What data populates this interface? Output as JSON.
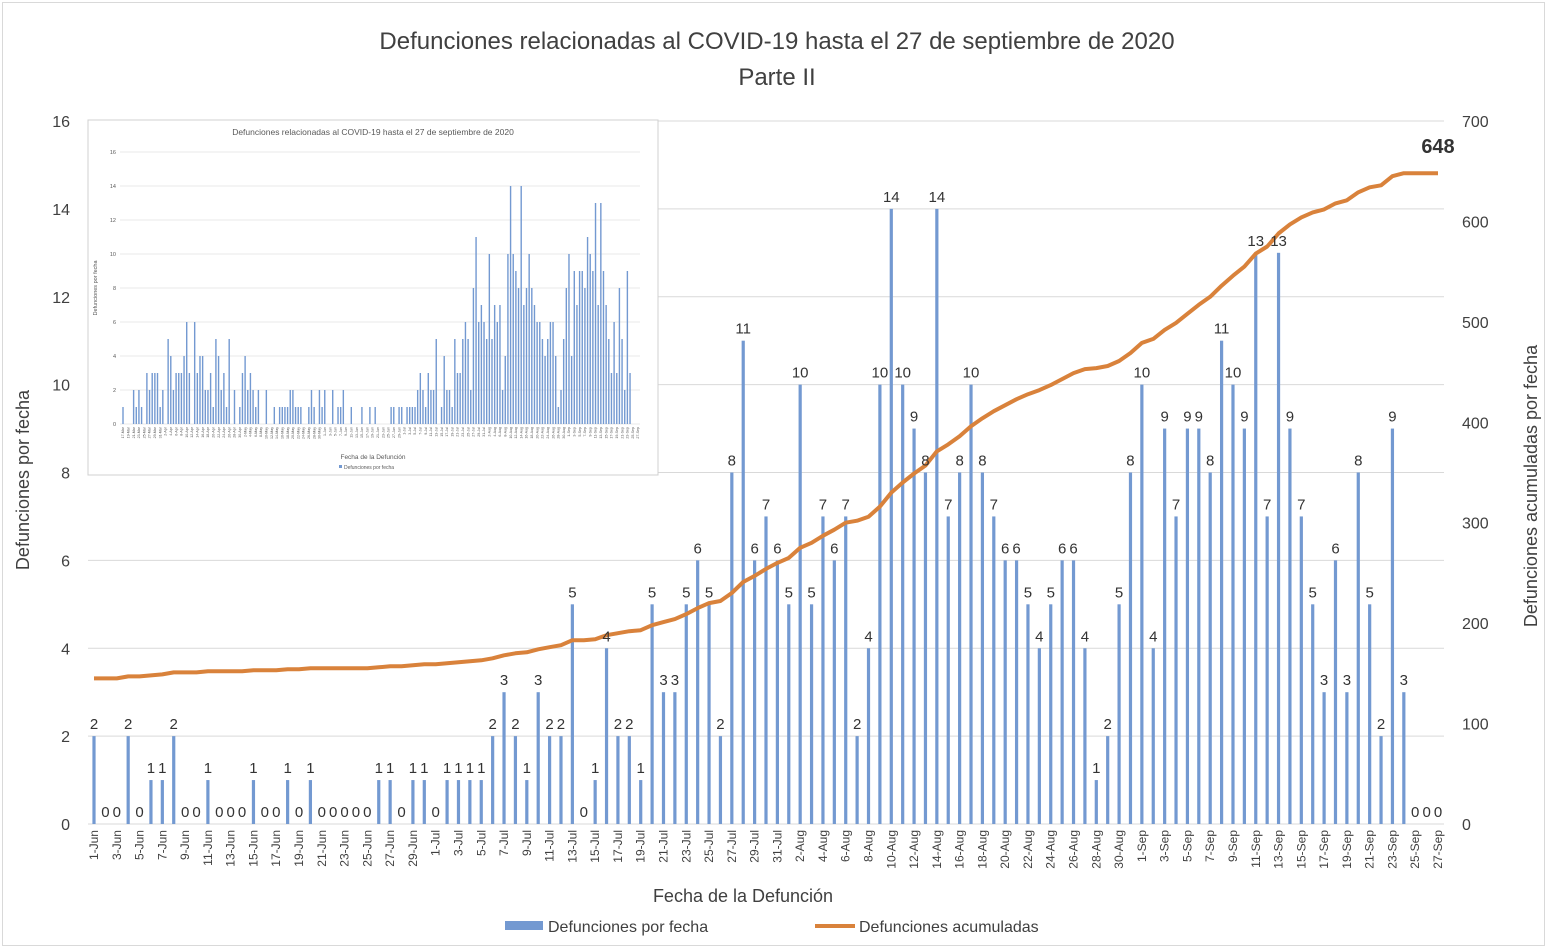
{
  "chart_data": [
    {
      "type": "bar+line",
      "title": "Defunciones relacionadas al COVID-19 hasta el 27 de septiembre de 2020",
      "subtitle": "Parte II",
      "xlabel": "Fecha de la Defunción",
      "ylabel": "Defunciones por fecha",
      "y2label": "Defunciones acumuladas por fecha",
      "ylim": [
        0,
        16
      ],
      "yticks": [
        0,
        2,
        4,
        6,
        8,
        10,
        12,
        14,
        16
      ],
      "y2lim": [
        0,
        700
      ],
      "y2ticks": [
        0,
        100,
        200,
        300,
        400,
        500,
        600,
        700
      ],
      "grid": true,
      "legend_position": "bottom",
      "categories": [
        "1-Jun",
        "2-Jun",
        "3-Jun",
        "4-Jun",
        "5-Jun",
        "6-Jun",
        "7-Jun",
        "8-Jun",
        "9-Jun",
        "10-Jun",
        "11-Jun",
        "12-Jun",
        "13-Jun",
        "14-Jun",
        "15-Jun",
        "16-Jun",
        "17-Jun",
        "18-Jun",
        "19-Jun",
        "20-Jun",
        "21-Jun",
        "22-Jun",
        "23-Jun",
        "24-Jun",
        "25-Jun",
        "26-Jun",
        "27-Jun",
        "28-Jun",
        "29-Jun",
        "30-Jun",
        "1-Jul",
        "2-Jul",
        "3-Jul",
        "4-Jul",
        "5-Jul",
        "6-Jul",
        "7-Jul",
        "8-Jul",
        "9-Jul",
        "10-Jul",
        "11-Jul",
        "12-Jul",
        "13-Jul",
        "14-Jul",
        "15-Jul",
        "16-Jul",
        "17-Jul",
        "18-Jul",
        "19-Jul",
        "20-Jul",
        "21-Jul",
        "22-Jul",
        "23-Jul",
        "24-Jul",
        "25-Jul",
        "26-Jul",
        "27-Jul",
        "28-Jul",
        "29-Jul",
        "30-Jul",
        "31-Jul",
        "1-Aug",
        "2-Aug",
        "3-Aug",
        "4-Aug",
        "5-Aug",
        "6-Aug",
        "7-Aug",
        "8-Aug",
        "9-Aug",
        "10-Aug",
        "11-Aug",
        "12-Aug",
        "13-Aug",
        "14-Aug",
        "15-Aug",
        "16-Aug",
        "17-Aug",
        "18-Aug",
        "19-Aug",
        "20-Aug",
        "21-Aug",
        "22-Aug",
        "23-Aug",
        "24-Aug",
        "25-Aug",
        "26-Aug",
        "27-Aug",
        "28-Aug",
        "29-Aug",
        "30-Aug",
        "31-Aug",
        "1-Sep",
        "2-Sep",
        "3-Sep",
        "4-Sep",
        "5-Sep",
        "6-Sep",
        "7-Sep",
        "8-Sep",
        "9-Sep",
        "10-Sep",
        "11-Sep",
        "12-Sep",
        "13-Sep",
        "14-Sep",
        "15-Sep",
        "16-Sep",
        "17-Sep",
        "18-Sep",
        "19-Sep",
        "20-Sep",
        "21-Sep",
        "22-Sep",
        "23-Sep",
        "24-Sep",
        "25-Sep",
        "26-Sep",
        "27-Sep"
      ],
      "series": [
        {
          "name": "Defunciones por fecha",
          "type": "bar",
          "axis": "left",
          "color": "#7399D1",
          "values": [
            2,
            0,
            0,
            2,
            0,
            1,
            1,
            2,
            0,
            0,
            1,
            0,
            0,
            0,
            1,
            0,
            0,
            1,
            0,
            1,
            0,
            0,
            0,
            0,
            0,
            1,
            1,
            0,
            1,
            1,
            0,
            1,
            1,
            1,
            1,
            2,
            3,
            2,
            1,
            3,
            2,
            2,
            5,
            0,
            1,
            4,
            2,
            2,
            1,
            5,
            3,
            3,
            5,
            6,
            5,
            2,
            8,
            11,
            6,
            7,
            6,
            5,
            10,
            5,
            7,
            6,
            7,
            2,
            4,
            10,
            14,
            10,
            9,
            8,
            14,
            7,
            8,
            10,
            8,
            7,
            6,
            6,
            5,
            4,
            5,
            6,
            6,
            4,
            1,
            2,
            5,
            8,
            10,
            4,
            9,
            7,
            9,
            9,
            8,
            11,
            10,
            9,
            13,
            7,
            13,
            9,
            7,
            5,
            3,
            6,
            3,
            8,
            5,
            2,
            9,
            3,
            0,
            0,
            0
          ]
        },
        {
          "name": "Defunciones acumuladas",
          "type": "line",
          "axis": "right",
          "color": "#D9823B",
          "values": [
            145,
            145,
            145,
            147,
            147,
            148,
            149,
            151,
            151,
            151,
            152,
            152,
            152,
            152,
            153,
            153,
            153,
            154,
            154,
            155,
            155,
            155,
            155,
            155,
            155,
            156,
            157,
            157,
            158,
            159,
            159,
            160,
            161,
            162,
            163,
            165,
            168,
            170,
            171,
            174,
            176,
            178,
            183,
            183,
            184,
            188,
            190,
            192,
            193,
            198,
            201,
            204,
            209,
            215,
            220,
            222,
            230,
            241,
            247,
            254,
            260,
            265,
            275,
            280,
            287,
            293,
            300,
            302,
            306,
            316,
            330,
            340,
            349,
            357,
            371,
            378,
            386,
            396,
            404,
            411,
            417,
            423,
            428,
            432,
            437,
            443,
            449,
            453,
            454,
            456,
            461,
            469,
            479,
            483,
            492,
            499,
            508,
            517,
            525,
            536,
            546,
            555,
            568,
            575,
            588,
            597,
            604,
            609,
            612,
            618,
            621,
            629,
            634,
            636,
            645,
            648,
            648,
            648,
            648
          ],
          "end_label": "648"
        }
      ]
    },
    {
      "type": "bar",
      "role": "inset",
      "title": "Defunciones relacionadas al COVID-19 hasta el 27 de septiembre de 2020",
      "xlabel": "Fecha de la Defunción",
      "ylabel": "Defunciones por fecha",
      "ylim": [
        0,
        16
      ],
      "yticks": [
        0,
        2,
        4,
        6,
        8,
        10,
        12,
        14,
        16
      ],
      "grid": true,
      "legend_position": "bottom",
      "categories": [
        "17-Mar",
        "18-Mar",
        "19-Mar",
        "20-Mar",
        "21-Mar",
        "22-Mar",
        "23-Mar",
        "24-Mar",
        "25-Mar",
        "26-Mar",
        "27-Mar",
        "28-Mar",
        "29-Mar",
        "30-Mar",
        "31-Mar",
        "1-Apr",
        "2-Apr",
        "3-Apr",
        "4-Apr",
        "5-Apr",
        "6-Apr",
        "7-Apr",
        "8-Apr",
        "9-Apr",
        "10-Apr",
        "11-Apr",
        "12-Apr",
        "13-Apr",
        "14-Apr",
        "15-Apr",
        "16-Apr",
        "17-Apr",
        "18-Apr",
        "19-Apr",
        "20-Apr",
        "21-Apr",
        "22-Apr",
        "23-Apr",
        "24-Apr",
        "25-Apr",
        "26-Apr",
        "27-Apr",
        "28-Apr",
        "29-Apr",
        "30-Apr",
        "1-May",
        "2-May",
        "3-May",
        "4-May",
        "5-May",
        "6-May",
        "7-May",
        "8-May",
        "9-May",
        "10-May",
        "11-May",
        "12-May",
        "13-May",
        "14-May",
        "15-May",
        "16-May",
        "17-May",
        "18-May",
        "19-May",
        "20-May",
        "21-May",
        "22-May",
        "23-May",
        "24-May",
        "25-May",
        "26-May",
        "27-May",
        "28-May",
        "29-May",
        "30-May",
        "31-May",
        "1-Jun",
        "2-Jun",
        "3-Jun",
        "4-Jun",
        "5-Jun",
        "6-Jun",
        "7-Jun",
        "8-Jun",
        "9-Jun",
        "10-Jun",
        "11-Jun",
        "12-Jun",
        "13-Jun",
        "14-Jun",
        "15-Jun",
        "16-Jun",
        "17-Jun",
        "18-Jun",
        "19-Jun",
        "20-Jun",
        "21-Jun",
        "22-Jun",
        "23-Jun",
        "24-Jun",
        "25-Jun",
        "26-Jun",
        "27-Jun",
        "28-Jun",
        "29-Jun",
        "30-Jun",
        "1-Jul",
        "2-Jul",
        "3-Jul",
        "4-Jul",
        "5-Jul",
        "6-Jul",
        "7-Jul",
        "8-Jul",
        "9-Jul",
        "10-Jul",
        "11-Jul",
        "12-Jul",
        "13-Jul",
        "14-Jul",
        "15-Jul",
        "16-Jul",
        "17-Jul",
        "18-Jul",
        "19-Jul",
        "20-Jul",
        "21-Jul",
        "22-Jul",
        "23-Jul",
        "24-Jul",
        "25-Jul",
        "26-Jul",
        "27-Jul",
        "28-Jul",
        "29-Jul",
        "30-Jul",
        "31-Jul",
        "1-Aug",
        "2-Aug",
        "3-Aug",
        "4-Aug",
        "5-Aug",
        "6-Aug",
        "7-Aug",
        "8-Aug",
        "9-Aug",
        "10-Aug",
        "11-Aug",
        "12-Aug",
        "13-Aug",
        "14-Aug",
        "15-Aug",
        "16-Aug",
        "17-Aug",
        "18-Aug",
        "19-Aug",
        "20-Aug",
        "21-Aug",
        "22-Aug",
        "23-Aug",
        "24-Aug",
        "25-Aug",
        "26-Aug",
        "27-Aug",
        "28-Aug",
        "29-Aug",
        "30-Aug",
        "31-Aug",
        "1-Sep",
        "2-Sep",
        "3-Sep",
        "4-Sep",
        "5-Sep",
        "6-Sep",
        "7-Sep",
        "8-Sep",
        "9-Sep",
        "10-Sep",
        "11-Sep",
        "12-Sep",
        "13-Sep",
        "14-Sep",
        "15-Sep",
        "16-Sep",
        "17-Sep",
        "18-Sep",
        "19-Sep",
        "20-Sep",
        "21-Sep",
        "22-Sep",
        "23-Sep",
        "24-Sep",
        "25-Sep",
        "26-Sep",
        "27-Sep"
      ],
      "series": [
        {
          "name": "Defunciones por fecha",
          "color": "#7399D1",
          "values": [
            1,
            0,
            0,
            0,
            2,
            1,
            2,
            1,
            0,
            3,
            2,
            3,
            3,
            3,
            1,
            2,
            0,
            5,
            4,
            2,
            3,
            3,
            3,
            4,
            6,
            3,
            0,
            6,
            3,
            4,
            4,
            2,
            2,
            3,
            1,
            5,
            4,
            2,
            3,
            1,
            5,
            0,
            2,
            0,
            1,
            3,
            4,
            2,
            3,
            2,
            1,
            2,
            0,
            0,
            2,
            0,
            0,
            1,
            0,
            1,
            1,
            1,
            1,
            2,
            2,
            1,
            1,
            1,
            0,
            0,
            1,
            2,
            1,
            0,
            2,
            1,
            2,
            0,
            0,
            2,
            0,
            1,
            1,
            2,
            0,
            0,
            1,
            0,
            0,
            0,
            1,
            0,
            0,
            1,
            0,
            1,
            0,
            0,
            0,
            0,
            0,
            1,
            1,
            0,
            1,
            1,
            0,
            1,
            1,
            1,
            1,
            2,
            3,
            2,
            1,
            3,
            2,
            2,
            5,
            0,
            1,
            4,
            2,
            2,
            1,
            5,
            3,
            3,
            5,
            6,
            5,
            2,
            8,
            11,
            6,
            7,
            6,
            5,
            10,
            5,
            7,
            6,
            7,
            2,
            4,
            10,
            14,
            10,
            9,
            8,
            14,
            7,
            8,
            10,
            8,
            7,
            6,
            6,
            5,
            4,
            5,
            6,
            6,
            4,
            1,
            2,
            5,
            8,
            10,
            4,
            9,
            7,
            9,
            9,
            8,
            11,
            10,
            9,
            13,
            7,
            13,
            9,
            7,
            5,
            3,
            6,
            3,
            8,
            5,
            2,
            9,
            3,
            0,
            0,
            0
          ]
        }
      ]
    }
  ]
}
